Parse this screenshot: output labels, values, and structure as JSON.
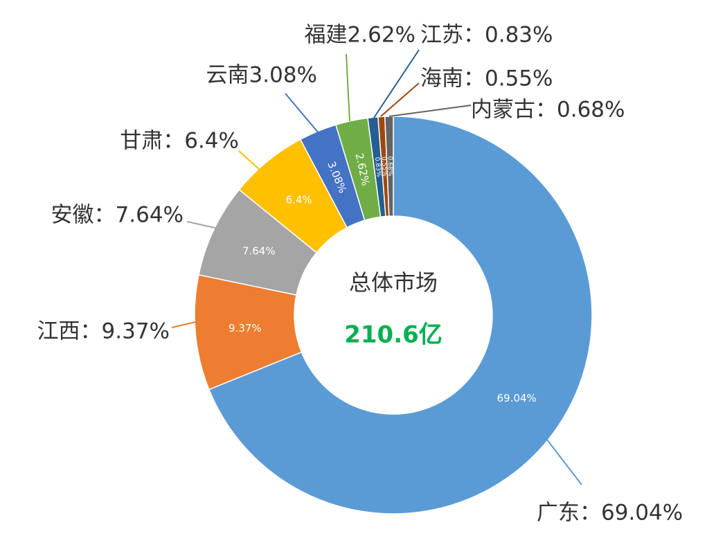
{
  "chart_data": {
    "type": "donut",
    "categories": [
      "广东：69.04%",
      "江西：9.37%",
      "安徽：7.64%",
      "甘肃：6.4%",
      "云南3.08%",
      "福建2.62%",
      "江苏：0.83%",
      "海南：0.55%",
      "内蒙古：0.68%"
    ],
    "values": [
      69.04,
      9.37,
      7.64,
      6.4,
      3.08,
      2.62,
      0.83,
      0.55,
      0.68
    ],
    "value_labels": [
      "69.04%",
      "9.37%",
      "7.64%",
      "6.4%",
      "3.08%",
      "2.62%",
      "0.83%",
      "0.55%",
      "0.68%"
    ],
    "colors": [
      "#5b9bd5",
      "#ed7d31",
      "#a5a5a5",
      "#ffc000",
      "#4472c4",
      "#70ad47",
      "#255e91",
      "#9e480e",
      "#636363"
    ],
    "annotations": [
      "总体市场",
      "210.6亿"
    ]
  }
}
